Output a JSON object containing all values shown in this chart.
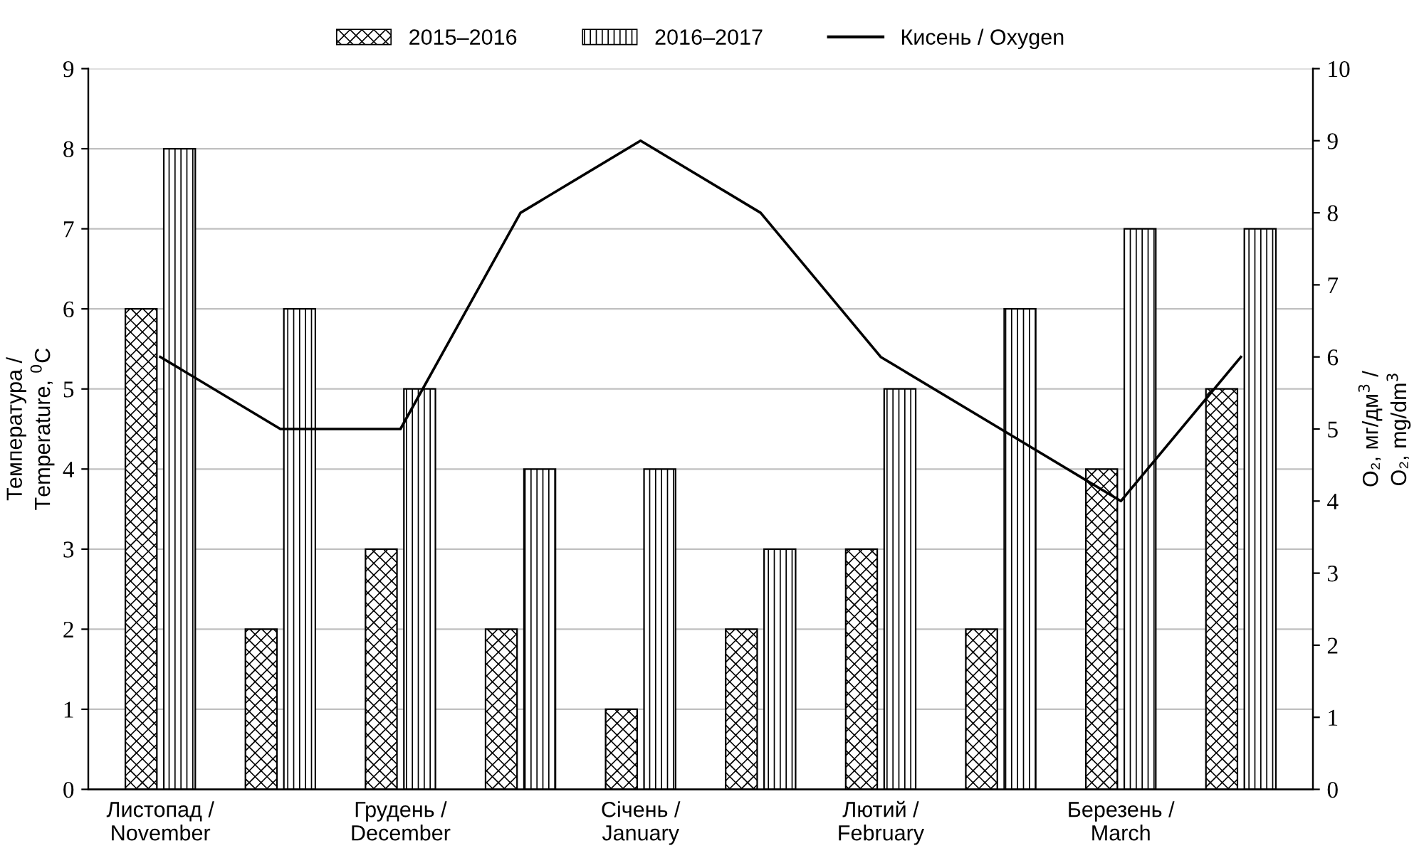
{
  "chart_data": {
    "type": "bar",
    "categories": [
      "Листопад /\nNovember",
      null,
      "Грудень /\nDecember",
      null,
      "Січень /\nJanuary",
      null,
      "Лютий /\nFebruary",
      null,
      "Березень /\nMarch",
      null
    ],
    "series": [
      {
        "name": "2015–2016",
        "color": "#000000",
        "values": [
          6,
          2,
          3,
          2,
          1,
          2,
          3,
          2,
          4,
          5
        ]
      },
      {
        "name": "2016–2017",
        "color": "#000000",
        "values": [
          8,
          6,
          5,
          4,
          4,
          3,
          5,
          6,
          7,
          7
        ]
      },
      {
        "name": "Кисень / Oxygen",
        "type": "line",
        "axis": "y2",
        "color": "#000000",
        "values": [
          6,
          5,
          5,
          8,
          9,
          8,
          6,
          5,
          4,
          6
        ]
      }
    ],
    "ylabel": "Температура /\nTemperature, $^{0}$C",
    "y2label": "O₂, мг/дм$^{3}$ /\nO₂, mg/dm$^{3}$",
    "ylim": [
      0,
      9
    ],
    "yticks": [
      0,
      1,
      2,
      3,
      4,
      5,
      6,
      7,
      8,
      9
    ],
    "y2lim": [
      0,
      10
    ],
    "y2ticks": [
      0,
      1,
      2,
      3,
      4,
      5,
      6,
      7,
      8,
      9,
      10
    ],
    "grid": "y",
    "legend": "top",
    "marker": "none",
    "line_style": "solid"
  }
}
